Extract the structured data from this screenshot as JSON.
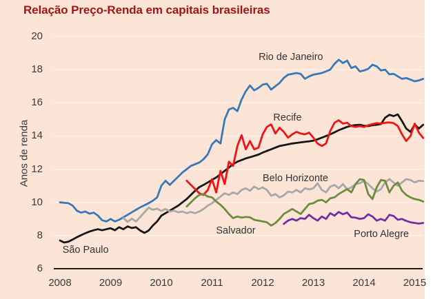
{
  "title": "Relação Preço-Renda em capitais brasileiras",
  "colors": {
    "figure_background": "#fce4d6",
    "right_margin": "#ffffff",
    "title_text": "#9e1616",
    "axis_text": "#3a3a3a",
    "gridline": "#fdf2ea",
    "axis_line": "#1a1a1a"
  },
  "chart_data": {
    "type": "line",
    "title": "Relação Preço-Renda em capitais brasileiras",
    "xlabel": "",
    "ylabel": "Anos de renda",
    "x_ticks": [
      2008,
      2009,
      2010,
      2011,
      2012,
      2013,
      2014,
      2015
    ],
    "y_ticks": [
      6,
      8,
      10,
      12,
      14,
      16,
      18,
      20
    ],
    "ylim": [
      6,
      20
    ],
    "xlim": [
      2007.88,
      2015.3
    ],
    "grid": "horizontal",
    "legend": "inline-labels",
    "x_unit": "year (monthly observations)",
    "series": [
      {
        "name": "Rio de Janeiro",
        "color": "#3779b7",
        "label_anchor": {
          "x": 2011.92,
          "y": 18.72
        },
        "x_start": 2008.0,
        "values": [
          10.0,
          9.97,
          9.95,
          9.8,
          9.5,
          9.38,
          9.45,
          9.32,
          9.38,
          9.2,
          8.92,
          8.85,
          9.0,
          8.85,
          8.95,
          9.1,
          9.25,
          9.4,
          9.55,
          9.7,
          9.82,
          9.95,
          10.1,
          10.3,
          11.0,
          11.3,
          11.05,
          11.3,
          11.55,
          11.8,
          12.0,
          12.2,
          12.3,
          12.4,
          12.6,
          12.9,
          13.5,
          13.75,
          13.55,
          15.0,
          15.6,
          15.7,
          15.5,
          16.2,
          16.7,
          17.05,
          16.75,
          16.9,
          17.1,
          17.15,
          16.8,
          17.0,
          17.2,
          17.5,
          17.7,
          17.75,
          17.8,
          17.75,
          17.45,
          17.6,
          17.7,
          17.75,
          17.8,
          17.9,
          18.0,
          18.35,
          18.6,
          18.4,
          18.55,
          18.1,
          18.2,
          17.9,
          17.95,
          18.05,
          18.3,
          18.2,
          17.95,
          18.0,
          17.72,
          17.75,
          17.6,
          17.45,
          17.5,
          17.4,
          17.3,
          17.35,
          17.45
        ]
      },
      {
        "name": "São Paulo",
        "color": "#151515",
        "label_anchor": {
          "x": 2008.05,
          "y": 7.08
        },
        "x_start": 2008.0,
        "values": [
          7.7,
          7.58,
          7.63,
          7.76,
          7.9,
          8.02,
          8.14,
          8.24,
          8.32,
          8.38,
          8.32,
          8.38,
          8.44,
          8.32,
          8.5,
          8.38,
          8.55,
          8.45,
          8.5,
          8.3,
          8.16,
          8.3,
          8.6,
          8.85,
          9.2,
          9.35,
          9.5,
          9.65,
          9.8,
          10.0,
          10.2,
          10.45,
          10.7,
          10.92,
          11.05,
          11.2,
          11.35,
          11.5,
          11.7,
          11.9,
          12.1,
          12.3,
          12.45,
          12.55,
          12.65,
          12.72,
          12.8,
          12.88,
          13.0,
          13.1,
          13.2,
          13.3,
          13.4,
          13.45,
          13.5,
          13.55,
          13.58,
          13.62,
          13.65,
          13.68,
          13.72,
          13.8,
          13.9,
          14.0,
          14.1,
          14.22,
          14.35,
          14.45,
          14.55,
          14.62,
          14.66,
          14.68,
          14.62,
          14.6,
          14.65,
          14.68,
          14.72,
          15.1,
          15.28,
          15.2,
          15.3,
          14.9,
          14.45,
          14.25,
          14.7,
          14.45,
          14.68
        ]
      },
      {
        "name": "Recife",
        "color": "#ee1414",
        "label_anchor": {
          "x": 2012.21,
          "y": 15.05
        },
        "x_start": 2010.5,
        "values": [
          11.3,
          11.05,
          10.8,
          10.55,
          10.45,
          10.75,
          11.4,
          10.6,
          11.9,
          11.1,
          12.45,
          12.2,
          13.4,
          14.05,
          13.2,
          13.7,
          13.2,
          13.3,
          14.1,
          14.55,
          14.7,
          14.15,
          14.5,
          14.25,
          13.9,
          14.1,
          14.25,
          14.15,
          14.1,
          14.2,
          13.9,
          13.55,
          13.4,
          13.55,
          14.3,
          14.8,
          14.95,
          14.75,
          14.8,
          14.6,
          14.55,
          14.6,
          14.55,
          14.65,
          14.72,
          14.78,
          14.75,
          14.8,
          14.82,
          14.78,
          14.6,
          14.1,
          13.7,
          14.0,
          14.75,
          14.2,
          13.88
        ]
      },
      {
        "name": "Belo Horizonte",
        "color": "#a8a8a8",
        "label_anchor": {
          "x": 2012.0,
          "y": 11.42
        },
        "x_start": 2009.25,
        "values": [
          9.05,
          8.82,
          9.02,
          8.85,
          9.12,
          9.4,
          9.68,
          9.55,
          9.62,
          9.48,
          9.6,
          9.45,
          9.5,
          9.4,
          9.45,
          9.35,
          9.42,
          9.35,
          9.45,
          9.6,
          9.8,
          9.95,
          10.15,
          10.35,
          10.55,
          10.45,
          10.6,
          10.5,
          10.75,
          10.85,
          10.7,
          10.95,
          10.8,
          10.9,
          10.75,
          10.4,
          10.5,
          10.3,
          10.42,
          10.65,
          10.6,
          10.75,
          10.6,
          10.85,
          10.78,
          10.85,
          11.15,
          10.75,
          10.6,
          10.95,
          11.05,
          10.85,
          11.1,
          10.8,
          10.9,
          11.1,
          11.15,
          11.3,
          11.1,
          10.85,
          10.65,
          10.8,
          11.2,
          11.4,
          11.2,
          11.0,
          11.2,
          11.4,
          11.35,
          11.2,
          11.3,
          11.28
        ]
      },
      {
        "name": "Salvador",
        "color": "#6d8c3f",
        "label_anchor": {
          "x": 2011.08,
          "y": 8.25
        },
        "x_start": 2010.5,
        "values": [
          9.75,
          10.0,
          10.25,
          10.45,
          10.5,
          10.35,
          10.3,
          10.05,
          9.85,
          9.6,
          9.3,
          9.05,
          9.15,
          9.08,
          9.12,
          9.1,
          8.95,
          8.9,
          8.85,
          8.8,
          8.6,
          8.75,
          9.0,
          9.3,
          9.45,
          9.6,
          9.45,
          9.3,
          9.6,
          9.9,
          9.95,
          10.1,
          10.15,
          10.0,
          10.25,
          10.3,
          10.5,
          10.65,
          10.8,
          10.6,
          11.1,
          11.4,
          11.35,
          10.5,
          10.2,
          10.9,
          11.35,
          11.3,
          10.6,
          11.0,
          11.2,
          10.7,
          10.45,
          10.3,
          10.2,
          10.15,
          10.05
        ]
      },
      {
        "name": "Porto Alegre",
        "color": "#7030a0",
        "label_anchor": {
          "x": 2013.8,
          "y": 8.05
        },
        "x_start": 2012.417,
        "values": [
          8.7,
          8.9,
          9.0,
          8.9,
          9.05,
          9.0,
          9.25,
          9.05,
          8.9,
          9.15,
          9.0,
          9.35,
          9.2,
          9.42,
          9.28,
          9.38,
          9.1,
          9.08,
          9.0,
          9.05,
          9.28,
          9.15,
          8.9,
          9.0,
          8.9,
          9.25,
          9.18,
          8.95,
          9.0,
          8.88,
          8.8,
          8.76,
          8.72,
          8.76
        ]
      }
    ]
  }
}
